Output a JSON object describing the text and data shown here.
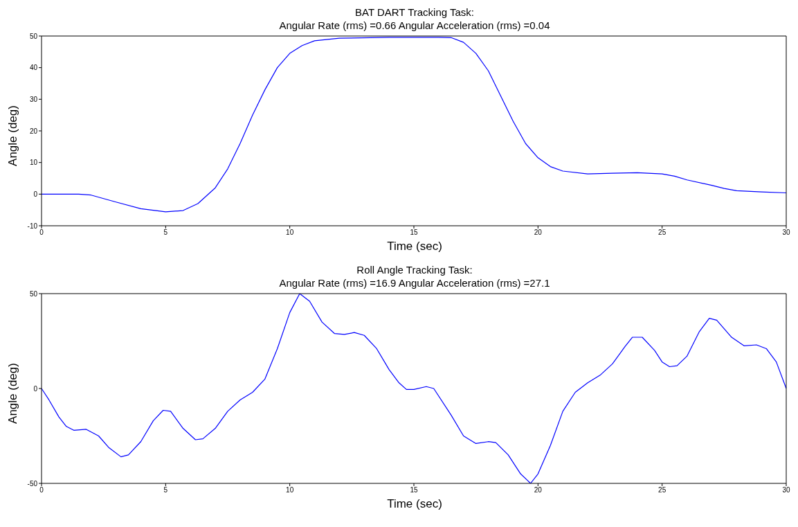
{
  "chart_data": [
    {
      "type": "line",
      "title": "BAT DART Tracking Task:",
      "subtitle": "Angular Rate (rms) =0.66  Angular Acceleration (rms) =0.04",
      "xlabel": "Time (sec)",
      "ylabel": "Angle (deg)",
      "color": "#0000ff",
      "xlim": [
        0,
        30
      ],
      "ylim": [
        -10,
        50
      ],
      "xticks": [
        0,
        5,
        10,
        15,
        20,
        25,
        30
      ],
      "yticks": [
        -10,
        0,
        10,
        20,
        30,
        40,
        50
      ],
      "x": [
        0,
        1.5,
        2,
        3,
        4,
        5,
        5.7,
        6.3,
        7,
        7.5,
        8,
        8.5,
        9,
        9.5,
        10,
        10.5,
        11,
        12,
        14,
        16,
        16.5,
        17,
        17.5,
        18,
        18.5,
        19,
        19.5,
        20,
        20.5,
        21,
        22,
        23,
        24,
        25,
        25.5,
        26,
        27,
        27.5,
        28,
        29,
        30
      ],
      "values": [
        0,
        0,
        -0.3,
        -2.5,
        -4.6,
        -5.6,
        -5.2,
        -3,
        2,
        8,
        16,
        25,
        33,
        40,
        44.5,
        47,
        48.5,
        49.3,
        49.6,
        49.6,
        49.5,
        48,
        44.5,
        39,
        31,
        23,
        16,
        11.5,
        8.7,
        7.3,
        6.4,
        6.6,
        6.8,
        6.4,
        5.7,
        4.5,
        2.8,
        1.8,
        1.1,
        0.7,
        0.4
      ]
    },
    {
      "type": "line",
      "title": "Roll Angle Tracking Task:",
      "subtitle": "Angular Rate (rms) =16.9  Angular Acceleration (rms) =27.1",
      "xlabel": "Time (sec)",
      "ylabel": "Angle (deg)",
      "color": "#0000ff",
      "xlim": [
        0,
        30
      ],
      "ylim": [
        -50,
        50
      ],
      "xticks": [
        0,
        5,
        10,
        15,
        20,
        25,
        30
      ],
      "yticks": [
        -50,
        0,
        50
      ],
      "x": [
        0,
        0.3,
        0.7,
        1,
        1.3,
        1.8,
        2.3,
        2.7,
        3.2,
        3.5,
        4,
        4.5,
        4.9,
        5.2,
        5.7,
        6.2,
        6.5,
        7,
        7.5,
        8,
        8.5,
        9,
        9.5,
        10,
        10.4,
        10.8,
        11.3,
        11.8,
        12.2,
        12.6,
        13,
        13.5,
        14,
        14.4,
        14.7,
        15,
        15.5,
        15.8,
        16.5,
        17,
        17.5,
        18,
        18.3,
        18.8,
        19.3,
        19.7,
        20,
        20.5,
        21,
        21.5,
        22,
        22.5,
        23,
        23.5,
        23.8,
        24.2,
        24.7,
        25,
        25.3,
        25.6,
        26,
        26.5,
        26.9,
        27.2,
        27.8,
        28.3,
        28.8,
        29.2,
        29.6,
        30
      ],
      "values": [
        0,
        -6,
        -15,
        -20,
        -22,
        -21.5,
        -25,
        -31,
        -36,
        -35,
        -28,
        -17,
        -11.5,
        -12,
        -21,
        -27,
        -26.5,
        -21,
        -12,
        -6,
        -2,
        5,
        21,
        40,
        50,
        46,
        35,
        29,
        28.5,
        29.5,
        28,
        21,
        10,
        3,
        -0.5,
        -0.5,
        1,
        0,
        -14,
        -25,
        -29,
        -28,
        -28.5,
        -35,
        -45,
        -50,
        -45,
        -30,
        -12,
        -2,
        3,
        7,
        13,
        22,
        27,
        27,
        20,
        14,
        11.5,
        12,
        17,
        30,
        37,
        36,
        27,
        22.5,
        23,
        21,
        14,
        0
      ]
    }
  ]
}
